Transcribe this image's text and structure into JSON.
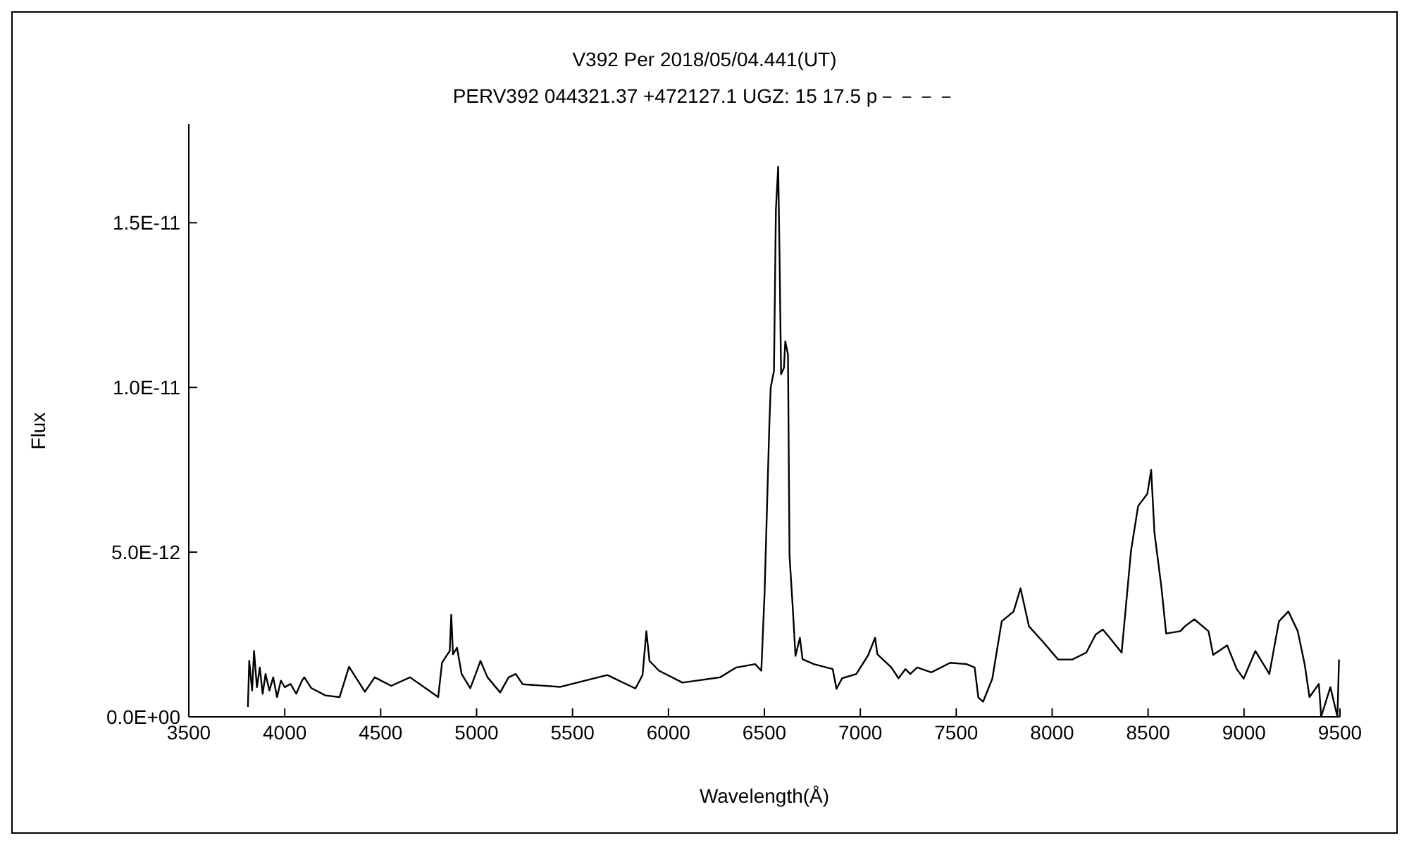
{
  "chart_data": {
    "type": "line",
    "title": "V392 Per   2018/05/04.441(UT)",
    "subtitle": "PERV392 044321.37 +472127.1 UGZ: 15 17.5 p－－－－",
    "xlabel": "Wavelength(Å)",
    "ylabel": "Flux",
    "x": [
      3808,
      3815,
      3830,
      3840,
      3855,
      3870,
      3885,
      3900,
      3920,
      3940,
      3960,
      3980,
      4000,
      4030,
      4060,
      4090,
      4102,
      4139,
      4212,
      4286,
      4335,
      4418,
      4469,
      4555,
      4653,
      4739,
      4800,
      4820,
      4860,
      4868,
      4877,
      4898,
      4922,
      4967,
      5005,
      5020,
      5057,
      5123,
      5167,
      5204,
      5240,
      5437,
      5681,
      5828,
      5865,
      5885,
      5901,
      5951,
      6073,
      6269,
      6354,
      6452,
      6484,
      6501,
      6526,
      6533,
      6550,
      6560,
      6572,
      6579,
      6587,
      6602,
      6609,
      6623,
      6631,
      6648,
      6662,
      6685,
      6699,
      6758,
      6856,
      6876,
      6905,
      6979,
      7040,
      7077,
      7089,
      7162,
      7199,
      7235,
      7260,
      7297,
      7370,
      7468,
      7554,
      7596,
      7615,
      7640,
      7688,
      7737,
      7799,
      7835,
      7879,
      7958,
      8031,
      8105,
      8178,
      8227,
      8264,
      8300,
      8362,
      8386,
      8411,
      8448,
      8496,
      8516,
      8533,
      8570,
      8594,
      8668,
      8692,
      8741,
      8815,
      8839,
      8912,
      8962,
      8998,
      9059,
      9132,
      9182,
      9231,
      9280,
      9316,
      9341,
      9390,
      9402,
      9450,
      9487,
      9495
    ],
    "series": [
      {
        "color": "#000000",
        "values": [
          3e-13,
          1.7e-12,
          8e-13,
          2e-12,
          9e-13,
          1.5e-12,
          7e-13,
          1.3e-12,
          8e-13,
          1.2e-12,
          6e-13,
          1.1e-12,
          9e-13,
          1e-12,
          7e-13,
          1.1e-12,
          1.2e-12,
          8.7e-13,
          6.5e-13,
          6e-13,
          1.52e-12,
          7.6e-13,
          1.2e-12,
          9.4e-13,
          1.2e-12,
          8.5e-13,
          6e-13,
          1.65e-12,
          2e-12,
          3.1e-12,
          1.9e-12,
          2.1e-12,
          1.3e-12,
          8.7e-13,
          1.45e-12,
          1.7e-12,
          1.2e-12,
          7.4e-13,
          1.2e-12,
          1.3e-12,
          9.9e-13,
          9.1e-13,
          1.27e-12,
          8.6e-13,
          1.27e-12,
          2.6e-12,
          1.7e-12,
          1.4e-12,
          1.04e-12,
          1.2e-12,
          1.5e-12,
          1.6e-12,
          1.4e-12,
          3.75e-12,
          8.9e-12,
          1e-11,
          1.05e-11,
          1.54e-11,
          1.67e-11,
          1.4e-11,
          1.04e-11,
          1.06e-11,
          1.14e-11,
          1.1e-11,
          4.9e-12,
          3.3e-12,
          1.85e-12,
          2.4e-12,
          1.75e-12,
          1.6e-12,
          1.45e-12,
          8.5e-13,
          1.17e-12,
          1.3e-12,
          1.86e-12,
          2.4e-12,
          1.9e-12,
          1.5e-12,
          1.17e-12,
          1.45e-12,
          1.3e-12,
          1.5e-12,
          1.35e-12,
          1.64e-12,
          1.6e-12,
          1.5e-12,
          5.9e-13,
          4.6e-13,
          1.16e-12,
          2.9e-12,
          3.2e-12,
          3.9e-12,
          2.75e-12,
          2.24e-12,
          1.74e-12,
          1.74e-12,
          1.95e-12,
          2.5e-12,
          2.65e-12,
          2.4e-12,
          1.95e-12,
          3.46e-12,
          5.04e-12,
          6.4e-12,
          6.77e-12,
          7.5e-12,
          5.6e-12,
          3.9e-12,
          2.53e-12,
          2.6e-12,
          2.75e-12,
          2.96e-12,
          2.6e-12,
          1.88e-12,
          2.17e-12,
          1.45e-12,
          1.16e-12,
          2e-12,
          1.3e-12,
          2.9e-12,
          3.2e-12,
          2.6e-12,
          1.6e-12,
          6e-13,
          1e-12,
          1e-14,
          9e-13,
          0.0,
          1.74e-12
        ]
      }
    ],
    "xlim": [
      3500,
      9500
    ],
    "xticks": [
      3500,
      4000,
      4500,
      5000,
      5500,
      6000,
      6500,
      7000,
      7500,
      8000,
      8500,
      9000,
      9500
    ],
    "ylim": [
      0,
      1.8e-11
    ],
    "yticks": [
      {
        "value": 0,
        "label": "0.0E+00"
      },
      {
        "value": 5e-12,
        "label": "5.0E-12"
      },
      {
        "value": 1e-11,
        "label": "1.0E-11"
      },
      {
        "value": 1.5e-11,
        "label": "1.5E-11"
      }
    ],
    "grid": false,
    "legend": false,
    "marker": "none",
    "line_style": "solid"
  }
}
